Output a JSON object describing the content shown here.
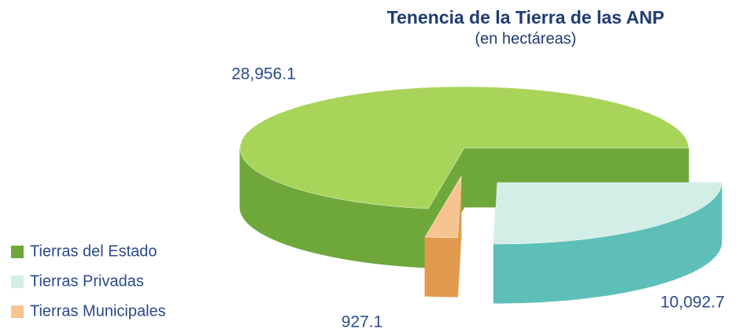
{
  "chart_data": {
    "type": "pie3d",
    "title": "Tenencia de la Tierra de las ANP",
    "subtitle": "(en hectáreas)",
    "categories": [
      "Tierras del Estado",
      "Tierras Privadas",
      "Tierras Municipales"
    ],
    "values": [
      28956.1,
      10092.7,
      927.1
    ],
    "value_labels": [
      "28,956.1",
      "10,092.7",
      "927.1"
    ],
    "colors": [
      "#a9d45a",
      "#d3eee6",
      "#f6c48e"
    ],
    "side_colors": [
      "#6fa83a",
      "#5dbfb7",
      "#e29a4e"
    ],
    "legend": "left"
  }
}
